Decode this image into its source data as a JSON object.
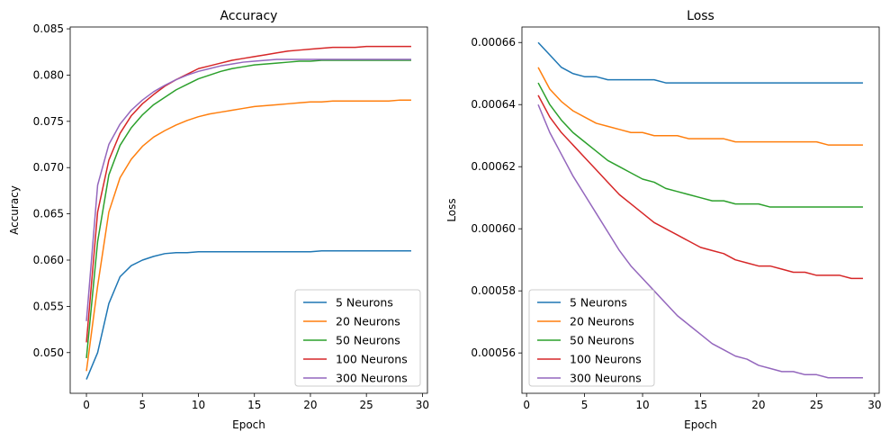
{
  "chart_data": [
    {
      "type": "line",
      "title": "Accuracy",
      "xlabel": "Epoch",
      "ylabel": "Accuracy",
      "xlim": [
        -1.45,
        30.45
      ],
      "ylim": [
        0.0456,
        0.0852
      ],
      "xticks": [
        0,
        5,
        10,
        15,
        20,
        25,
        30
      ],
      "xtick_labels": [
        "0",
        "5",
        "10",
        "15",
        "20",
        "25",
        "30"
      ],
      "yticks": [
        0.05,
        0.055,
        0.06,
        0.065,
        0.07,
        0.075,
        0.08,
        0.085
      ],
      "ytick_labels": [
        "0.050",
        "0.055",
        "0.060",
        "0.065",
        "0.070",
        "0.075",
        "0.080",
        "0.085"
      ],
      "grid": false,
      "legend_position": "bottom-right",
      "x": [
        0,
        1,
        2,
        3,
        4,
        5,
        6,
        7,
        8,
        9,
        10,
        11,
        12,
        13,
        14,
        15,
        16,
        17,
        18,
        19,
        20,
        21,
        22,
        23,
        24,
        25,
        26,
        27,
        28,
        29
      ],
      "series": [
        {
          "name": "5 Neurons",
          "color": "#1f77b4",
          "values": [
            0.0471,
            0.05,
            0.0553,
            0.0582,
            0.0594,
            0.06,
            0.0604,
            0.0607,
            0.0608,
            0.0608,
            0.0609,
            0.0609,
            0.0609,
            0.0609,
            0.0609,
            0.0609,
            0.0609,
            0.0609,
            0.0609,
            0.0609,
            0.0609,
            0.061,
            0.061,
            0.061,
            0.061,
            0.061,
            0.061,
            0.061,
            0.061,
            0.061
          ]
        },
        {
          "name": "20 Neurons",
          "color": "#ff7f0e",
          "values": [
            0.048,
            0.0572,
            0.0652,
            0.0689,
            0.0709,
            0.0723,
            0.0733,
            0.074,
            0.0746,
            0.0751,
            0.0755,
            0.0758,
            0.076,
            0.0762,
            0.0764,
            0.0766,
            0.0767,
            0.0768,
            0.0769,
            0.077,
            0.0771,
            0.0771,
            0.0772,
            0.0772,
            0.0772,
            0.0772,
            0.0772,
            0.0772,
            0.0773,
            0.0773
          ]
        },
        {
          "name": "50 Neurons",
          "color": "#2ca02c",
          "values": [
            0.0494,
            0.062,
            0.0692,
            0.0724,
            0.0743,
            0.0757,
            0.0768,
            0.0776,
            0.0784,
            0.079,
            0.0796,
            0.08,
            0.0804,
            0.0807,
            0.0809,
            0.0811,
            0.0812,
            0.0813,
            0.0814,
            0.0815,
            0.0815,
            0.0816,
            0.0816,
            0.0816,
            0.0816,
            0.0816,
            0.0816,
            0.0816,
            0.0816,
            0.0816
          ]
        },
        {
          "name": "100 Neurons",
          "color": "#d62728",
          "values": [
            0.0511,
            0.0652,
            0.0708,
            0.0737,
            0.0756,
            0.0769,
            0.0779,
            0.0788,
            0.0795,
            0.0801,
            0.0807,
            0.081,
            0.0813,
            0.0816,
            0.0818,
            0.082,
            0.0822,
            0.0824,
            0.0826,
            0.0827,
            0.0828,
            0.0829,
            0.083,
            0.083,
            0.083,
            0.0831,
            0.0831,
            0.0831,
            0.0831,
            0.0831
          ]
        },
        {
          "name": "300 Neurons",
          "color": "#9467bd",
          "values": [
            0.0534,
            0.0681,
            0.0725,
            0.0747,
            0.0762,
            0.0773,
            0.0782,
            0.0789,
            0.0795,
            0.08,
            0.0804,
            0.0807,
            0.081,
            0.0812,
            0.0814,
            0.0815,
            0.0816,
            0.0817,
            0.0817,
            0.0817,
            0.0817,
            0.0817,
            0.0817,
            0.0817,
            0.0817,
            0.0817,
            0.0817,
            0.0817,
            0.0817,
            0.0817
          ]
        }
      ]
    },
    {
      "type": "line",
      "title": "Loss",
      "xlabel": "Epoch",
      "ylabel": "Loss",
      "xlim": [
        -0.4,
        30.4
      ],
      "ylim": [
        0.000547,
        0.000665
      ],
      "xticks": [
        0,
        5,
        10,
        15,
        20,
        25,
        30
      ],
      "xtick_labels": [
        "0",
        "5",
        "10",
        "15",
        "20",
        "25",
        "30"
      ],
      "yticks": [
        0.00056,
        0.00058,
        0.0006,
        0.00062,
        0.00064,
        0.00066
      ],
      "ytick_labels": [
        "0.00056",
        "0.00058",
        "0.00060",
        "0.00062",
        "0.00064",
        "0.00066"
      ],
      "grid": false,
      "legend_position": "bottom-left",
      "x": [
        1,
        2,
        3,
        4,
        5,
        6,
        7,
        8,
        9,
        10,
        11,
        12,
        13,
        14,
        15,
        16,
        17,
        18,
        19,
        20,
        21,
        22,
        23,
        24,
        25,
        26,
        27,
        28,
        29
      ],
      "series": [
        {
          "name": "5 Neurons",
          "color": "#1f77b4",
          "values": [
            0.00066,
            0.000656,
            0.000652,
            0.00065,
            0.000649,
            0.000649,
            0.000648,
            0.000648,
            0.000648,
            0.000648,
            0.000648,
            0.000647,
            0.000647,
            0.000647,
            0.000647,
            0.000647,
            0.000647,
            0.000647,
            0.000647,
            0.000647,
            0.000647,
            0.000647,
            0.000647,
            0.000647,
            0.000647,
            0.000647,
            0.000647,
            0.000647,
            0.000647
          ]
        },
        {
          "name": "20 Neurons",
          "color": "#ff7f0e",
          "values": [
            0.000652,
            0.000645,
            0.000641,
            0.000638,
            0.000636,
            0.000634,
            0.000633,
            0.000632,
            0.000631,
            0.000631,
            0.00063,
            0.00063,
            0.00063,
            0.000629,
            0.000629,
            0.000629,
            0.000629,
            0.000628,
            0.000628,
            0.000628,
            0.000628,
            0.000628,
            0.000628,
            0.000628,
            0.000628,
            0.000627,
            0.000627,
            0.000627,
            0.000627
          ]
        },
        {
          "name": "50 Neurons",
          "color": "#2ca02c",
          "values": [
            0.000647,
            0.00064,
            0.000635,
            0.000631,
            0.000628,
            0.000625,
            0.000622,
            0.00062,
            0.000618,
            0.000616,
            0.000615,
            0.000613,
            0.000612,
            0.000611,
            0.00061,
            0.000609,
            0.000609,
            0.000608,
            0.000608,
            0.000608,
            0.000607,
            0.000607,
            0.000607,
            0.000607,
            0.000607,
            0.000607,
            0.000607,
            0.000607,
            0.000607
          ]
        },
        {
          "name": "100 Neurons",
          "color": "#d62728",
          "values": [
            0.000643,
            0.000636,
            0.000631,
            0.000627,
            0.000623,
            0.000619,
            0.000615,
            0.000611,
            0.000608,
            0.000605,
            0.000602,
            0.0006,
            0.000598,
            0.000596,
            0.000594,
            0.000593,
            0.000592,
            0.00059,
            0.000589,
            0.000588,
            0.000588,
            0.000587,
            0.000586,
            0.000586,
            0.000585,
            0.000585,
            0.000585,
            0.000584,
            0.000584
          ]
        },
        {
          "name": "300 Neurons",
          "color": "#9467bd",
          "values": [
            0.00064,
            0.000631,
            0.000624,
            0.000617,
            0.000611,
            0.000605,
            0.000599,
            0.000593,
            0.000588,
            0.000584,
            0.00058,
            0.000576,
            0.000572,
            0.000569,
            0.000566,
            0.000563,
            0.000561,
            0.000559,
            0.000558,
            0.000556,
            0.000555,
            0.000554,
            0.000554,
            0.000553,
            0.000553,
            0.000552,
            0.000552,
            0.000552,
            0.000552
          ]
        }
      ]
    }
  ]
}
